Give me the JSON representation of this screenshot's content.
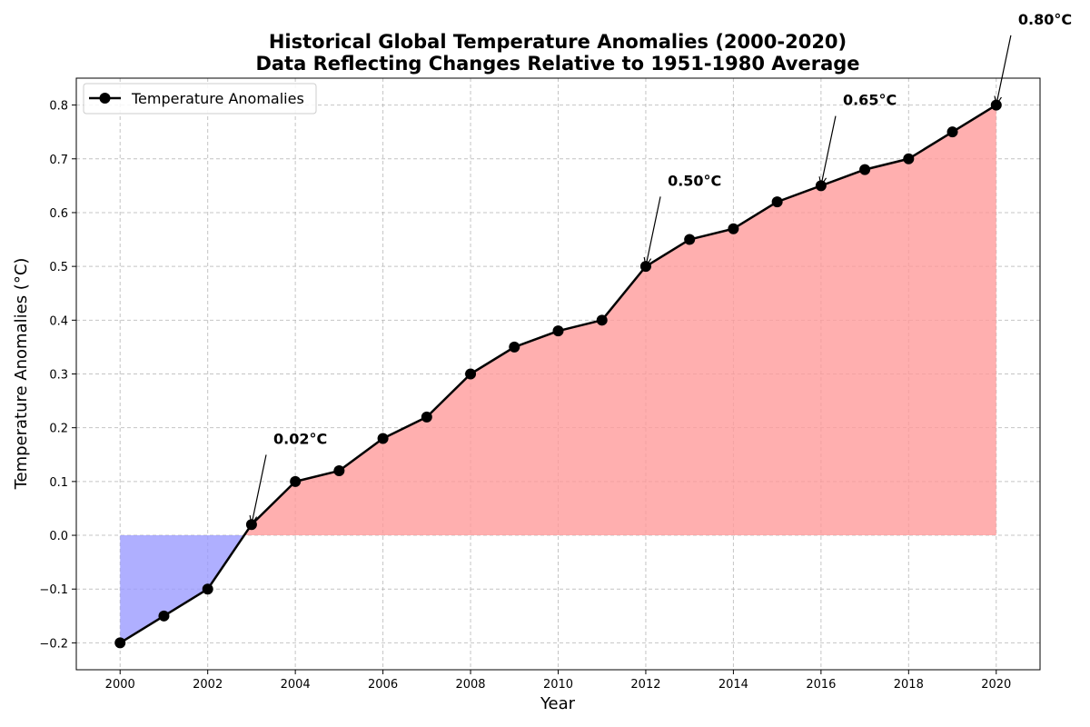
{
  "chart_data": {
    "type": "line",
    "title_line1": "Historical Global Temperature Anomalies (2000-2020)",
    "title_line2": "Data Reflecting Changes Relative to 1951-1980 Average",
    "xlabel": "Year",
    "ylabel": "Temperature Anomalies (°C)",
    "x": [
      2000,
      2001,
      2002,
      2003,
      2004,
      2005,
      2006,
      2007,
      2008,
      2009,
      2010,
      2011,
      2012,
      2013,
      2014,
      2015,
      2016,
      2017,
      2018,
      2019,
      2020
    ],
    "series": [
      {
        "name": "Temperature Anomalies",
        "values": [
          -0.2,
          -0.15,
          -0.1,
          0.02,
          0.1,
          0.12,
          0.18,
          0.22,
          0.3,
          0.35,
          0.38,
          0.4,
          0.5,
          0.55,
          0.57,
          0.62,
          0.65,
          0.68,
          0.7,
          0.75,
          0.8
        ]
      }
    ],
    "xlim": [
      1999,
      2021
    ],
    "ylim": [
      -0.25,
      0.85
    ],
    "xticks": [
      2000,
      2002,
      2004,
      2006,
      2008,
      2010,
      2012,
      2014,
      2016,
      2018,
      2020
    ],
    "yticks": [
      -0.2,
      -0.1,
      0.0,
      0.1,
      0.2,
      0.3,
      0.4,
      0.5,
      0.6,
      0.7,
      0.8
    ],
    "ytick_labels": [
      "−0.2",
      "−0.1",
      "0.0",
      "0.1",
      "0.2",
      "0.3",
      "0.4",
      "0.5",
      "0.6",
      "0.7",
      "0.8"
    ],
    "annotations": [
      {
        "x": 2003,
        "y": 0.02,
        "text": "0.02°C",
        "text_x": 2003.5,
        "text_y": 0.17
      },
      {
        "x": 2012,
        "y": 0.5,
        "text": "0.50°C",
        "text_x": 2012.5,
        "text_y": 0.65
      },
      {
        "x": 2016,
        "y": 0.65,
        "text": "0.65°C",
        "text_x": 2016.5,
        "text_y": 0.8
      },
      {
        "x": 2020,
        "y": 0.8,
        "text": "0.80°C",
        "text_x": 2020.5,
        "text_y": 0.95
      }
    ],
    "grid": true,
    "legend_position": "top-left",
    "colors": {
      "line": "#000000",
      "marker": "#000000",
      "fill_positive": "#ff9999",
      "fill_negative": "#9999ff",
      "grid": "#b0b0b0"
    }
  }
}
